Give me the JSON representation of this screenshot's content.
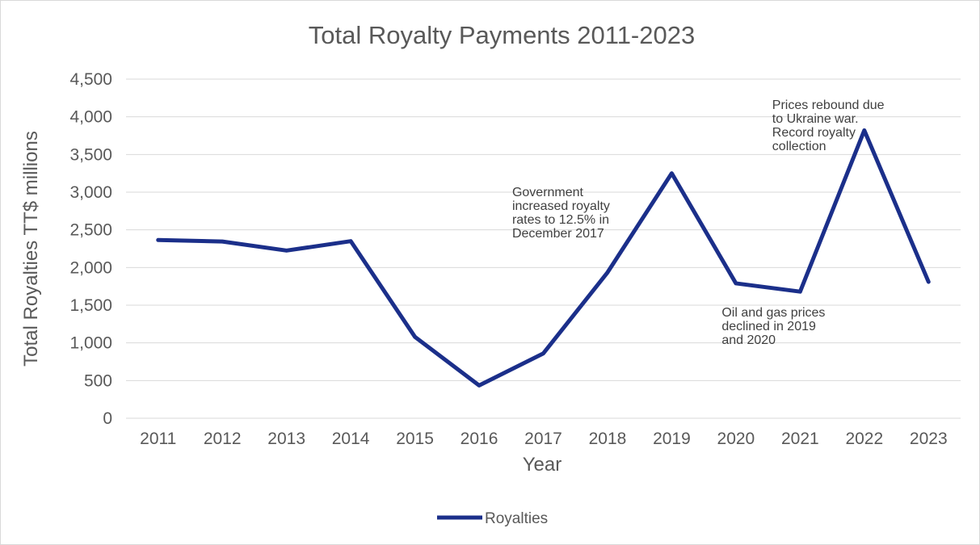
{
  "chart_data": {
    "type": "line",
    "title": "Total Royalty Payments 2011-2023",
    "xlabel": "Year",
    "ylabel": "Total Royalties TT$ millions",
    "categories": [
      "2011",
      "2012",
      "2013",
      "2014",
      "2015",
      "2016",
      "2017",
      "2018",
      "2019",
      "2020",
      "2021",
      "2022",
      "2023"
    ],
    "series": [
      {
        "name": "Royalties",
        "color": "#1b2f8a",
        "values": [
          2365,
          2345,
          2225,
          2350,
          1080,
          435,
          860,
          1935,
          3250,
          1790,
          1680,
          3820,
          1810
        ]
      }
    ],
    "ylim": [
      0,
      4500
    ],
    "yticks": [
      0,
      500,
      1000,
      1500,
      2000,
      2500,
      3000,
      3500,
      4000,
      4500
    ],
    "ytick_labels": [
      "0",
      "500",
      "1,000",
      "1,500",
      "2,000",
      "2,500",
      "3,000",
      "3,500",
      "4,000",
      "4,500"
    ],
    "grid": true,
    "legend": "bottom",
    "annotations": [
      {
        "at": "2018",
        "lines": [
          "Government",
          "increased royalty",
          "rates to 12.5% in",
          "December 2017"
        ]
      },
      {
        "at": "2021",
        "lines": [
          "Oil and gas prices",
          "declined in 2019",
          "and 2020"
        ]
      },
      {
        "at": "2022",
        "lines": [
          "Prices rebound due",
          "to Ukraine war.",
          "Record royalty",
          "collection"
        ]
      }
    ]
  }
}
